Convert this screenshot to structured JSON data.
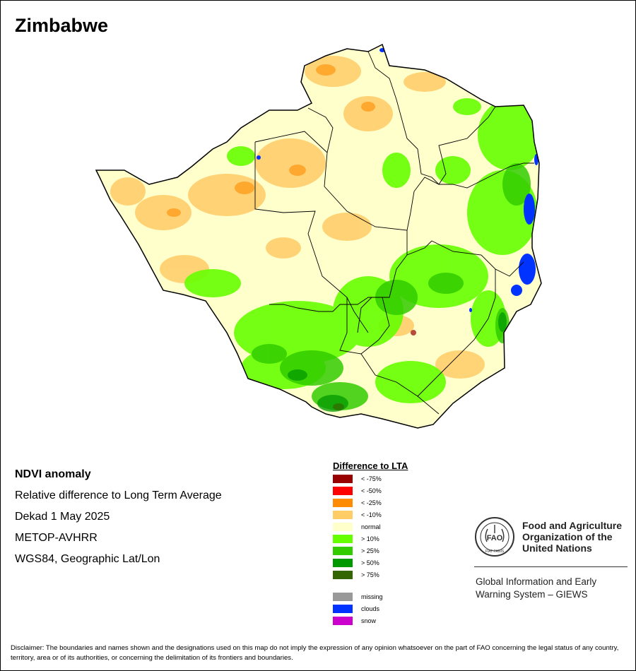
{
  "map": {
    "title": "Zimbabwe"
  },
  "info": {
    "lines": [
      "NDVI anomaly",
      "Relative difference to Long Term Average",
      "Dekad 1 May 2025",
      "METOP-AVHRR",
      "WGS84, Geographic Lat/Lon"
    ]
  },
  "legend": {
    "title": "Difference to LTA",
    "classes": [
      {
        "label": "< -75%",
        "color": "#990000"
      },
      {
        "label": "< -50%",
        "color": "#ff0000"
      },
      {
        "label": "< -25%",
        "color": "#ff8c00"
      },
      {
        "label": "< -10%",
        "color": "#ffcc66"
      },
      {
        "label": "normal",
        "color": "#ffffcc"
      },
      {
        "label": "> 10%",
        "color": "#66ff00"
      },
      {
        "label": "> 25%",
        "color": "#33cc00"
      },
      {
        "label": "> 50%",
        "color": "#009900"
      },
      {
        "label": "> 75%",
        "color": "#336600"
      }
    ],
    "extra": [
      {
        "label": "missing",
        "color": "#999999"
      },
      {
        "label": "clouds",
        "color": "#0033ff"
      },
      {
        "label": "snow",
        "color": "#cc00cc"
      }
    ]
  },
  "org": {
    "logo_text": "FAO",
    "logo_motto": "FIAT PANIS",
    "name_lines": [
      "Food and Agriculture",
      "Organization of the",
      "United Nations"
    ],
    "system_lines": [
      "Global Information and Early",
      "Warning System – GIEWS"
    ]
  },
  "disclaimer": "Disclaimer: The boundaries and names shown and the designations used on this map do not imply the expression of any opinion whatsoever on the part of FAO concerning the legal status of any country, territory, area or of its authorities, or concerning the delimitation of its frontiers and boundaries."
}
